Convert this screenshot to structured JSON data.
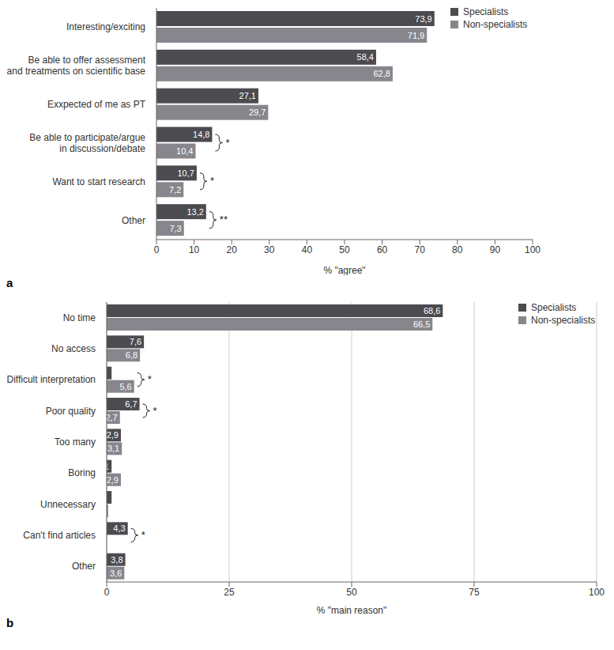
{
  "chart_data": [
    {
      "type": "bar",
      "orientation": "horizontal",
      "panel_label": "a",
      "categories": [
        "Interesting/exciting",
        "Be able to offer assessment\nand treatments on scientific base",
        "Exxpected of me as PT",
        "Be able to participate/argue\nin discussion/debate",
        "Want to start research",
        "Other"
      ],
      "series": [
        {
          "name": "Specialists",
          "color": "#4b4b50",
          "values": [
            73.9,
            58.4,
            27.1,
            14.8,
            10.7,
            13.2
          ],
          "value_labels": [
            "73,9",
            "58,4",
            "27,1",
            "14,8",
            "10,7",
            "13,2"
          ]
        },
        {
          "name": "Non-specialists",
          "color": "#86868c",
          "values": [
            71.9,
            62.8,
            29.7,
            10.4,
            7.2,
            7.3
          ],
          "value_labels": [
            "71,9",
            "62,8",
            "29,7",
            "10,4",
            "7,2",
            "7,3"
          ]
        }
      ],
      "x_label": "% \"agree\"",
      "xlim": [
        0,
        100
      ],
      "xticks": [
        0,
        10,
        20,
        30,
        40,
        50,
        60,
        70,
        80,
        90,
        100
      ],
      "grid": false,
      "legend": "upper right",
      "data_labels": true,
      "annotations": [
        {
          "category": "Be able to participate/argue\nin discussion/debate",
          "text": "*"
        },
        {
          "category": "Want to start research",
          "text": "*"
        },
        {
          "category": "Other",
          "text": "**"
        }
      ]
    },
    {
      "type": "bar",
      "orientation": "horizontal",
      "panel_label": "b",
      "categories": [
        "No time",
        "No access",
        "Difficult interpretation",
        "Poor quality",
        "Too many",
        "Boring",
        "Unnecessary",
        "Can't find articles",
        "Other"
      ],
      "series": [
        {
          "name": "Specialists",
          "color": "#4b4b50",
          "values": [
            68.6,
            7.6,
            1.0,
            6.7,
            2.9,
            1,
            1.0,
            4.3,
            3.8
          ],
          "value_labels": [
            "68,6",
            "7,6",
            null,
            "6,7",
            "2,9",
            "1",
            null,
            "4,3",
            "3,8"
          ]
        },
        {
          "name": "Non-specialists",
          "color": "#86868c",
          "values": [
            66.5,
            6.8,
            5.6,
            2.7,
            3.1,
            2.9,
            0.3,
            0,
            3.6
          ],
          "value_labels": [
            "66,5",
            "6,8",
            "5,6",
            "2,7",
            "3,1",
            "2,9",
            null,
            null,
            "3,6"
          ]
        }
      ],
      "x_label": "% \"main reason\"",
      "xlim": [
        0,
        100
      ],
      "xticks": [
        0,
        25,
        50,
        75,
        100
      ],
      "grid": true,
      "legend": "upper right",
      "data_labels": true,
      "annotations": [
        {
          "category": "Difficult interpretation",
          "text": "*"
        },
        {
          "category": "Poor quality",
          "text": "*"
        },
        {
          "category": "Can't find articles",
          "text": "*"
        }
      ]
    }
  ]
}
